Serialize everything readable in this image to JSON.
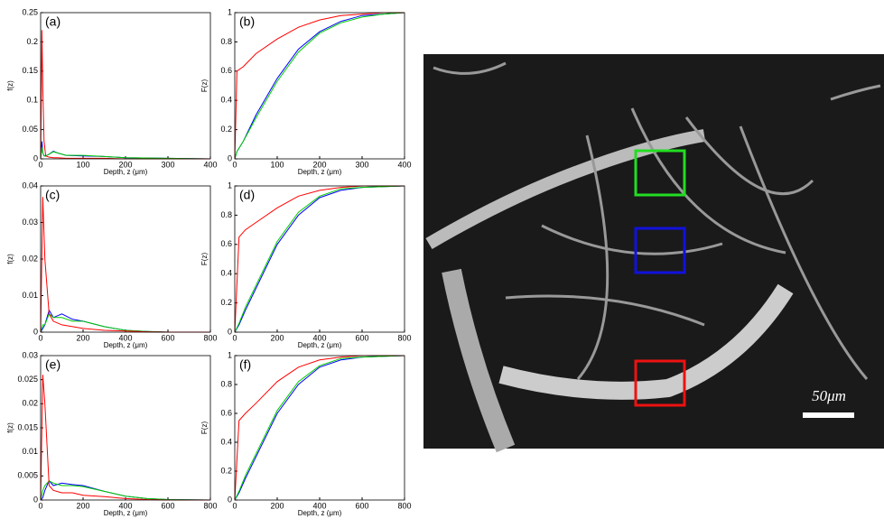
{
  "chart_data": [
    {
      "type": "line",
      "label": "(a)",
      "xlabel": "Depth, z (μm)",
      "ylabel": "f(z)",
      "xlim": [
        0,
        400
      ],
      "xticks": [
        0,
        100,
        200,
        300,
        400
      ],
      "ylim": [
        0,
        0.25
      ],
      "yticks": [
        0,
        0.05,
        0.1,
        0.15,
        0.2,
        0.25
      ],
      "x": [
        0,
        3,
        5,
        8,
        12,
        20,
        30,
        40,
        60,
        100,
        150,
        200,
        300,
        400
      ],
      "series": [
        {
          "color": "#0000ff",
          "values": [
            0,
            0.03,
            0.01,
            0.005,
            0.005,
            0.008,
            0.013,
            0.01,
            0.006,
            0.005,
            0.004,
            0.002,
            0.001,
            0
          ]
        },
        {
          "color": "#00cc00",
          "values": [
            0,
            0.02,
            0.01,
            0.005,
            0.005,
            0.008,
            0.012,
            0.01,
            0.006,
            0.006,
            0.004,
            0.002,
            0.001,
            0
          ]
        },
        {
          "color": "#ff0000",
          "values": [
            0,
            0.22,
            0.12,
            0.03,
            0.005,
            0.003,
            0.002,
            0.002,
            0.001,
            0.001,
            0.001,
            0,
            0,
            0
          ]
        }
      ]
    },
    {
      "type": "line",
      "label": "(b)",
      "xlabel": "Depth, z (μm)",
      "ylabel": "F(z)",
      "xlim": [
        0,
        400
      ],
      "xticks": [
        0,
        100,
        200,
        300,
        400
      ],
      "ylim": [
        0,
        1
      ],
      "yticks": [
        0,
        0.2,
        0.4,
        0.6,
        0.8,
        1
      ],
      "x": [
        0,
        5,
        20,
        50,
        100,
        150,
        200,
        250,
        300,
        350,
        400
      ],
      "series": [
        {
          "color": "#0000ff",
          "values": [
            0,
            0.05,
            0.12,
            0.3,
            0.55,
            0.75,
            0.87,
            0.94,
            0.98,
            0.99,
            1
          ]
        },
        {
          "color": "#00cc00",
          "values": [
            0,
            0.05,
            0.12,
            0.28,
            0.53,
            0.73,
            0.86,
            0.93,
            0.97,
            0.99,
            1
          ]
        },
        {
          "color": "#ff0000",
          "values": [
            0,
            0.6,
            0.63,
            0.72,
            0.82,
            0.9,
            0.95,
            0.98,
            0.99,
            1,
            1
          ]
        }
      ]
    },
    {
      "type": "line",
      "label": "(c)",
      "xlabel": "Depth, z (μm)",
      "ylabel": "f(z)",
      "xlim": [
        0,
        800
      ],
      "xticks": [
        0,
        200,
        400,
        600,
        800
      ],
      "ylim": [
        0,
        0.04
      ],
      "yticks": [
        0,
        0.01,
        0.02,
        0.03,
        0.04
      ],
      "x": [
        0,
        10,
        20,
        40,
        60,
        100,
        150,
        200,
        300,
        400,
        500,
        600,
        800
      ],
      "series": [
        {
          "color": "#0000ff",
          "values": [
            0,
            0.001,
            0.002,
            0.006,
            0.004,
            0.005,
            0.0035,
            0.003,
            0.0015,
            0.0005,
            0.0002,
            0,
            0
          ]
        },
        {
          "color": "#00cc00",
          "values": [
            0,
            0.002,
            0.002,
            0.005,
            0.004,
            0.004,
            0.003,
            0.003,
            0.0015,
            0.0005,
            0.0002,
            0,
            0
          ]
        },
        {
          "color": "#ff0000",
          "values": [
            0,
            0.037,
            0.02,
            0.005,
            0.003,
            0.002,
            0.0015,
            0.001,
            0.0005,
            0.0003,
            0.0001,
            0,
            0
          ]
        }
      ]
    },
    {
      "type": "line",
      "label": "(d)",
      "xlabel": "Depth, z (μm)",
      "ylabel": "F(z)",
      "xlim": [
        0,
        800
      ],
      "xticks": [
        0,
        200,
        400,
        600,
        800
      ],
      "ylim": [
        0,
        1
      ],
      "yticks": [
        0,
        0.2,
        0.4,
        0.6,
        0.8,
        1
      ],
      "x": [
        0,
        20,
        50,
        100,
        200,
        300,
        400,
        500,
        600,
        800
      ],
      "series": [
        {
          "color": "#0000ff",
          "values": [
            0,
            0.05,
            0.15,
            0.3,
            0.6,
            0.8,
            0.92,
            0.97,
            0.99,
            1
          ]
        },
        {
          "color": "#00cc00",
          "values": [
            0,
            0.06,
            0.17,
            0.32,
            0.62,
            0.82,
            0.93,
            0.98,
            0.99,
            1
          ]
        },
        {
          "color": "#ff0000",
          "values": [
            0,
            0.65,
            0.7,
            0.75,
            0.85,
            0.93,
            0.97,
            0.99,
            1,
            1
          ]
        }
      ]
    },
    {
      "type": "line",
      "label": "(e)",
      "xlabel": "Depth, z (μm)",
      "ylabel": "f(z)",
      "xlim": [
        0,
        800
      ],
      "xticks": [
        0,
        200,
        400,
        600,
        800
      ],
      "ylim": [
        0,
        0.03
      ],
      "yticks": [
        0,
        0.005,
        0.01,
        0.015,
        0.02,
        0.025,
        0.03
      ],
      "x": [
        0,
        10,
        20,
        40,
        60,
        100,
        150,
        200,
        300,
        400,
        500,
        600,
        800
      ],
      "series": [
        {
          "color": "#0000ff",
          "values": [
            0,
            0.0005,
            0.002,
            0.004,
            0.003,
            0.0035,
            0.0032,
            0.003,
            0.0018,
            0.0008,
            0.0003,
            0.0001,
            0
          ]
        },
        {
          "color": "#00cc00",
          "values": [
            0,
            0.002,
            0.003,
            0.004,
            0.0035,
            0.003,
            0.003,
            0.0028,
            0.0018,
            0.0008,
            0.0003,
            0.0001,
            0
          ]
        },
        {
          "color": "#ff0000",
          "values": [
            0,
            0.026,
            0.02,
            0.003,
            0.002,
            0.0015,
            0.0015,
            0.001,
            0.0007,
            0.0003,
            0.0001,
            0,
            0
          ]
        }
      ]
    },
    {
      "type": "line",
      "label": "(f)",
      "xlabel": "Depth, z (μm)",
      "ylabel": "F(z)",
      "xlim": [
        0,
        800
      ],
      "xticks": [
        0,
        200,
        400,
        600,
        800
      ],
      "ylim": [
        0,
        1
      ],
      "yticks": [
        0,
        0.2,
        0.4,
        0.6,
        0.8,
        1
      ],
      "x": [
        0,
        20,
        50,
        100,
        200,
        300,
        400,
        500,
        600,
        800
      ],
      "series": [
        {
          "color": "#0000ff",
          "values": [
            0,
            0.05,
            0.15,
            0.3,
            0.6,
            0.8,
            0.92,
            0.97,
            0.99,
            1
          ]
        },
        {
          "color": "#00cc00",
          "values": [
            0,
            0.06,
            0.17,
            0.32,
            0.62,
            0.82,
            0.93,
            0.98,
            0.99,
            1
          ]
        },
        {
          "color": "#ff0000",
          "values": [
            0,
            0.55,
            0.6,
            0.67,
            0.82,
            0.92,
            0.97,
            0.99,
            1,
            1
          ]
        }
      ]
    }
  ],
  "image": {
    "scale_label": "50μm"
  }
}
